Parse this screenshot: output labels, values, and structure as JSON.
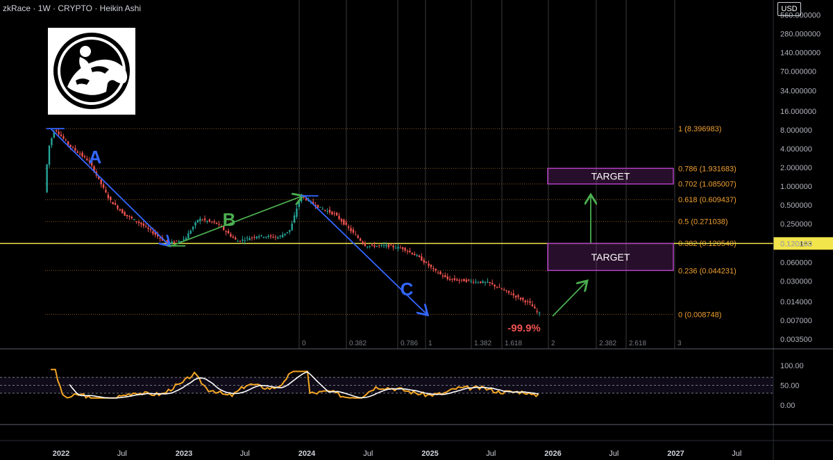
{
  "header": {
    "symbol": "zkRace",
    "interval": "1W",
    "exchange": "CRYPTO",
    "chart_style": "Heikin Ashi"
  },
  "currency_button": {
    "label": "USD"
  },
  "logo": {
    "icon": "jockey-on-horse-logo"
  },
  "colors": {
    "background": "#000000",
    "candle_up": "#26a69a",
    "candle_down": "#ef5350",
    "fib_line": "#b8742a",
    "fib_text": "#f0a030",
    "price_line": "#f2e54b",
    "wave_a_c": "#3366ff",
    "wave_b": "#4caf50",
    "target_box": "#b040c0",
    "rsi_line": "#f5a623",
    "rsi_ma": "#ffffff"
  },
  "chart_data": {
    "type": "candlestick",
    "y_scale": "log",
    "price_axis_ticks": [
      "560.000000",
      "280.000000",
      "140.000000",
      "70.000000",
      "34.000000",
      "16.000000",
      "8.000000",
      "4.000000",
      "2.000000",
      "1.000000",
      "0.500000",
      "0.250000",
      "0.120000",
      "0.060000",
      "0.030000",
      "0.014000",
      "0.007000",
      "0.003500"
    ],
    "time_axis_labels": [
      "2022",
      "Jul",
      "2023",
      "Jul",
      "2024",
      "Jul",
      "2025",
      "Jul",
      "2026",
      "Jul",
      "2027",
      "Jul"
    ],
    "current_price": "0.120163",
    "fib_retracement": [
      {
        "ratio": "1",
        "value": "8.396983"
      },
      {
        "ratio": "0.786",
        "value": "1.931683"
      },
      {
        "ratio": "0.702",
        "value": "1.085007"
      },
      {
        "ratio": "0.618",
        "value": "0.609437"
      },
      {
        "ratio": "0.5",
        "value": "0.271038"
      },
      {
        "ratio": "0.382",
        "value": "0.120540"
      },
      {
        "ratio": "0.236",
        "value": "0.044231"
      },
      {
        "ratio": "0",
        "value": "0.008748"
      }
    ],
    "fib_time_labels": [
      "0",
      "0.382",
      "0.786",
      "1",
      "1.382",
      "1.618",
      "2",
      "2.382",
      "2.618",
      "3"
    ],
    "waves": [
      {
        "label": "A",
        "from_date": "2021-12-01",
        "from_price": 8.4,
        "to_date": "2022-11-20",
        "to_price": 0.11
      },
      {
        "label": "B",
        "from_date": "2022-11-25",
        "from_price": 0.11,
        "to_date": "2023-12-20",
        "to_price": 0.7
      },
      {
        "label": "C",
        "from_date": "2023-12-25",
        "from_price": 0.7,
        "to_date": "2024-12-25",
        "to_price": 0.0085
      }
    ],
    "drawdown_label": "-99.9%",
    "targets": [
      {
        "label": "TARGET",
        "low": 1.085007,
        "high": 1.931683
      },
      {
        "label": "TARGET",
        "low": 0.044231,
        "high": 0.12054
      }
    ],
    "rsi": {
      "ticks": [
        "100.00",
        "50.00",
        "0.00"
      ],
      "band_upper": 70,
      "band_lower": 30
    }
  }
}
